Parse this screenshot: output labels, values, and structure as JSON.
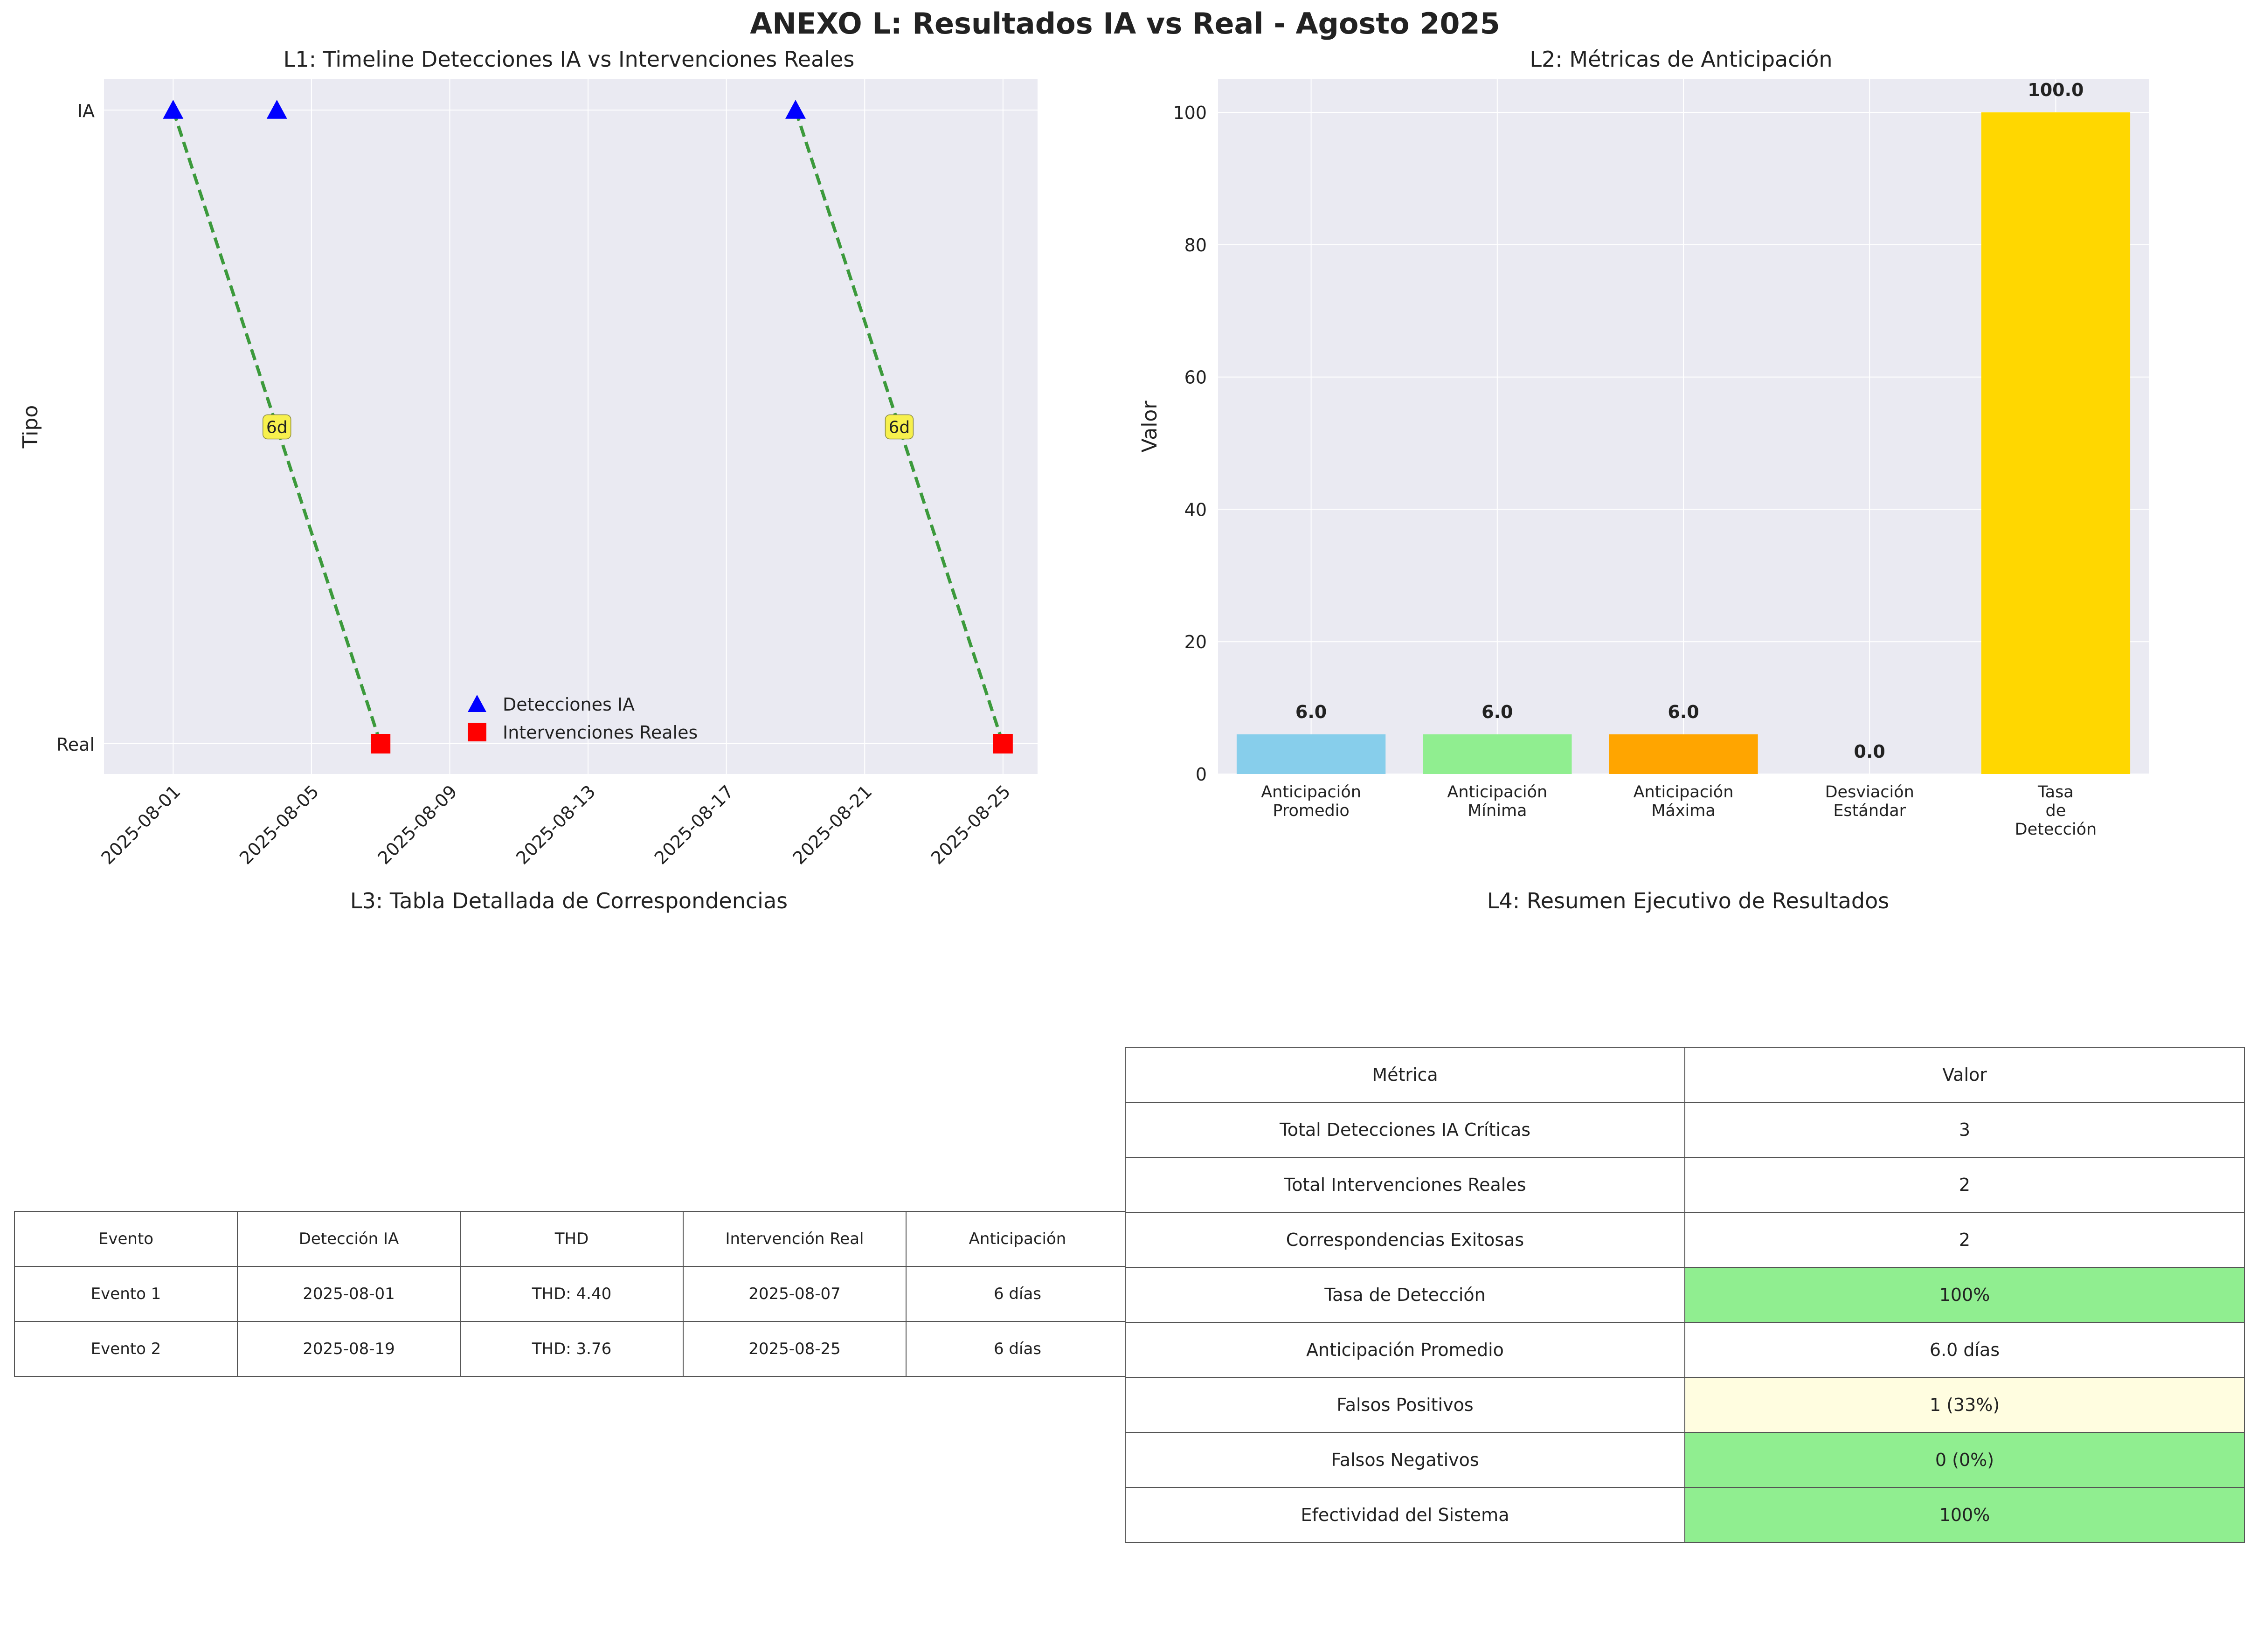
{
  "title": "ANEXO L: Resultados IA vs Real - Agosto 2025",
  "colors": {
    "ia_marker": "#0000ff",
    "real_marker": "#ff0000",
    "link_line": "#3c9a3c",
    "label_box": "#f7f04d",
    "plot_bg": "#eaeaf2",
    "good_cell": "#90ee90",
    "warn_cell": "#fffde0"
  },
  "chart_data": [
    {
      "id": "L1",
      "type": "scatter",
      "title": "L1: Timeline Detecciones IA vs Intervenciones Reales",
      "ylabel": "Tipo",
      "y_categories": [
        "Real",
        "IA"
      ],
      "x_ticks": [
        "2025-08-01",
        "2025-08-05",
        "2025-08-09",
        "2025-08-13",
        "2025-08-17",
        "2025-08-21",
        "2025-08-25"
      ],
      "xlim": [
        "2025-07-30",
        "2025-08-26"
      ],
      "grid": true,
      "legend_position": "lower center",
      "series": [
        {
          "name": "Detecciones IA",
          "marker": "triangle",
          "color": "#0000ff",
          "x": [
            "2025-08-01",
            "2025-08-04",
            "2025-08-19"
          ],
          "y": [
            "IA",
            "IA",
            "IA"
          ]
        },
        {
          "name": "Intervenciones Reales",
          "marker": "square",
          "color": "#ff0000",
          "x": [
            "2025-08-07",
            "2025-08-25"
          ],
          "y": [
            "Real",
            "Real"
          ]
        }
      ],
      "links": [
        {
          "from": "2025-08-01",
          "to": "2025-08-07",
          "label": "6d"
        },
        {
          "from": "2025-08-19",
          "to": "2025-08-25",
          "label": "6d"
        }
      ]
    },
    {
      "id": "L2",
      "type": "bar",
      "title": "L2: Métricas de Anticipación",
      "ylabel": "Valor",
      "ylim": [
        0,
        105
      ],
      "y_ticks": [
        0,
        20,
        40,
        60,
        80,
        100
      ],
      "grid": true,
      "categories": [
        [
          "Anticipación",
          "Promedio"
        ],
        [
          "Anticipación",
          "Mínima"
        ],
        [
          "Anticipación",
          "Máxima"
        ],
        [
          "Desviación",
          "Estándar"
        ],
        [
          "Tasa",
          "de",
          "Detección"
        ]
      ],
      "values": [
        6.0,
        6.0,
        6.0,
        0.0,
        100.0
      ],
      "value_labels": [
        "6.0",
        "6.0",
        "6.0",
        "0.0",
        "100.0"
      ],
      "bar_colors": [
        "#87ceeb",
        "#90ee90",
        "#ffa500",
        "#ff6347",
        "#ffd700"
      ]
    },
    {
      "id": "L3",
      "type": "table",
      "title": "L3: Tabla Detallada de Correspondencias",
      "headers": [
        "Evento",
        "Detección IA",
        "THD",
        "Intervención Real",
        "Anticipación"
      ],
      "rows": [
        [
          "Evento 1",
          "2025-08-01",
          "THD: 4.40",
          "2025-08-07",
          "6 días"
        ],
        [
          "Evento 2",
          "2025-08-19",
          "THD: 3.76",
          "2025-08-25",
          "6 días"
        ]
      ]
    },
    {
      "id": "L4",
      "type": "table",
      "title": "L4: Resumen Ejecutivo de Resultados",
      "headers": [
        "Métrica",
        "Valor"
      ],
      "rows": [
        {
          "metric": "Total Detecciones IA Críticas",
          "value": "3",
          "highlight": ""
        },
        {
          "metric": "Total Intervenciones Reales",
          "value": "2",
          "highlight": ""
        },
        {
          "metric": "Correspondencias Exitosas",
          "value": "2",
          "highlight": ""
        },
        {
          "metric": "Tasa de Detección",
          "value": "100%",
          "highlight": "#90ee90"
        },
        {
          "metric": "Anticipación Promedio",
          "value": "6.0 días",
          "highlight": ""
        },
        {
          "metric": "Falsos Positivos",
          "value": "1 (33%)",
          "highlight": "#fffde0"
        },
        {
          "metric": "Falsos Negativos",
          "value": "0 (0%)",
          "highlight": "#90ee90"
        },
        {
          "metric": "Efectividad del Sistema",
          "value": "100%",
          "highlight": "#90ee90"
        }
      ]
    }
  ]
}
